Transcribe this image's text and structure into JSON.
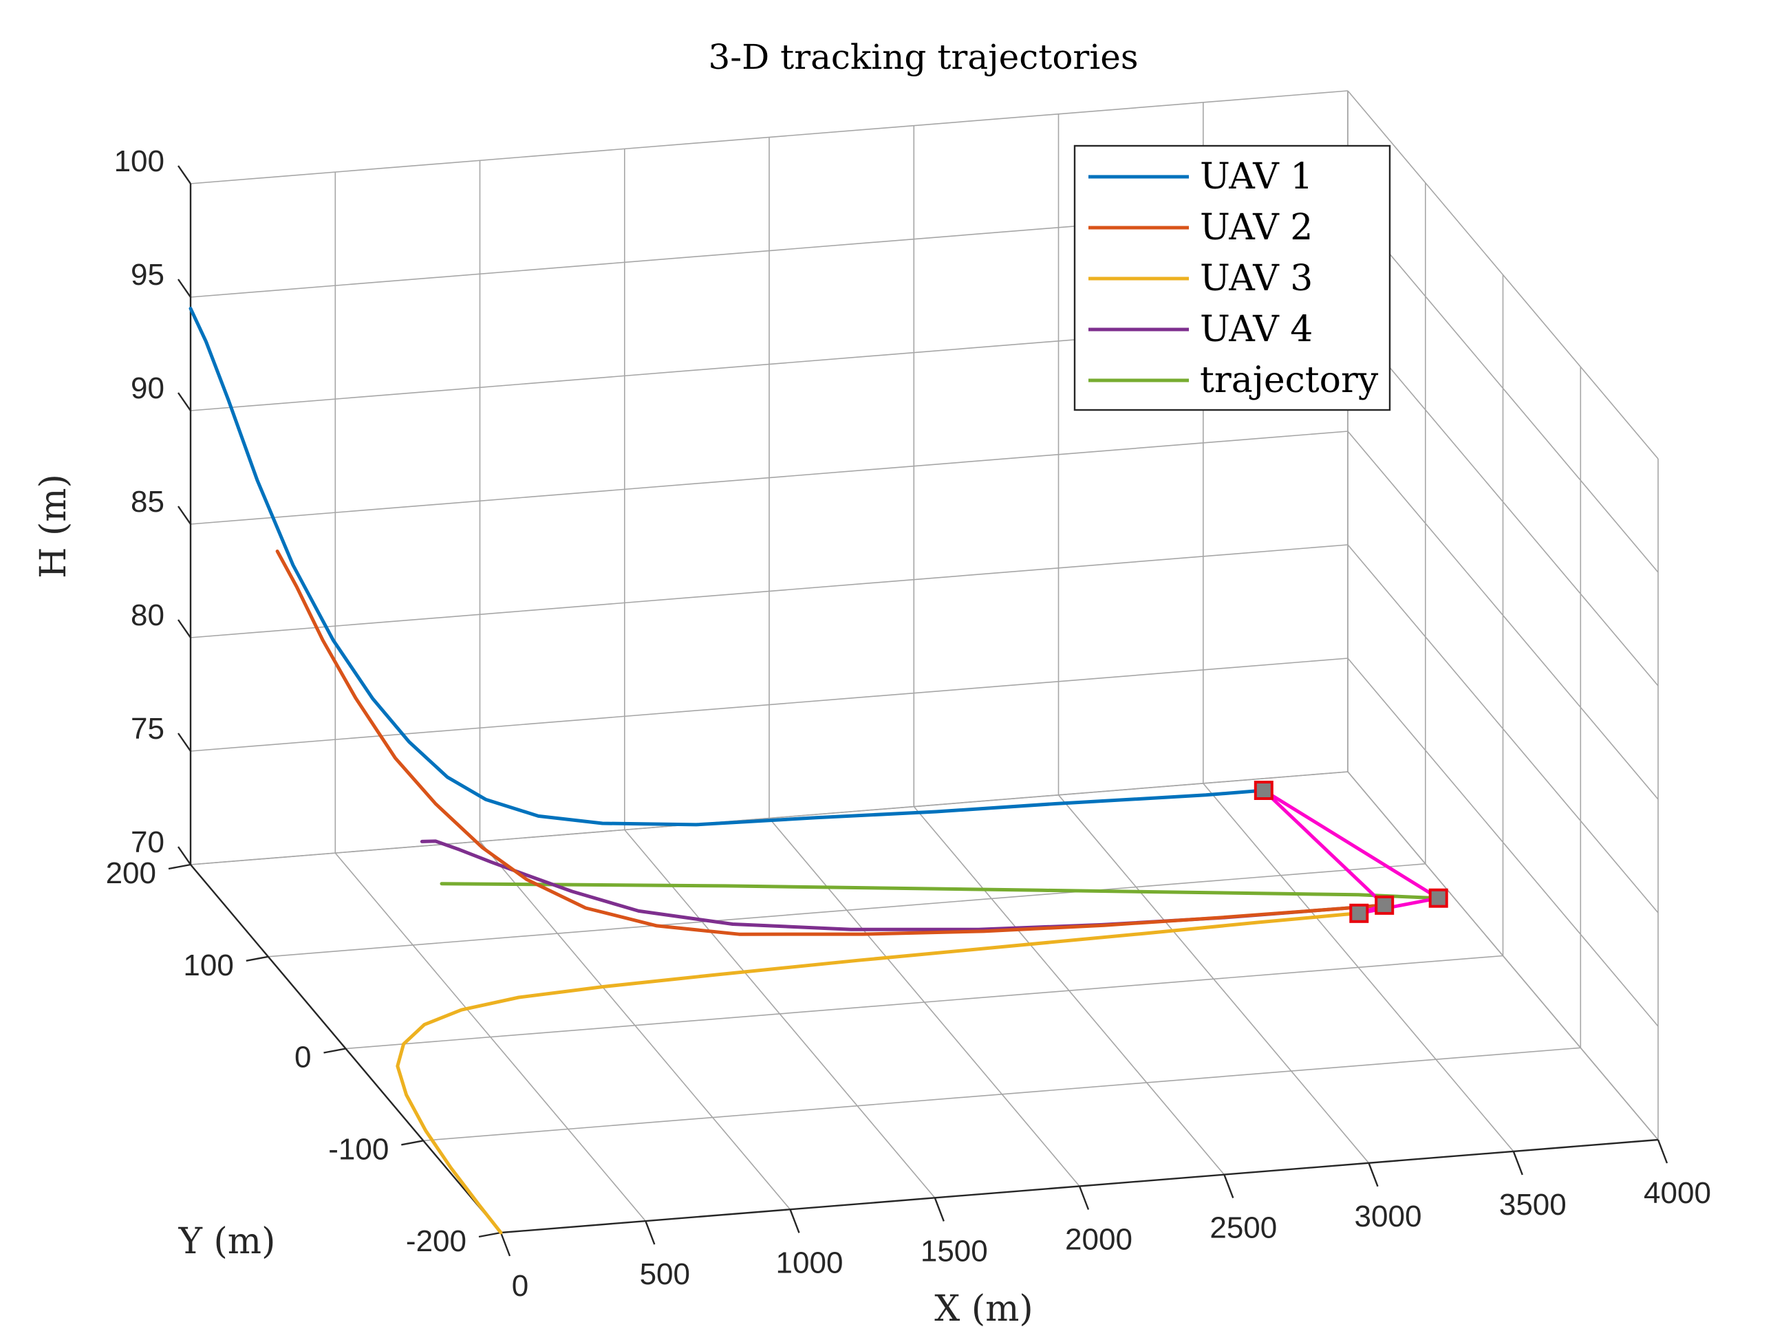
{
  "chart_data": {
    "type": "line3d",
    "title": "3-D tracking trajectories",
    "xlabel": "X (m)",
    "ylabel": "Y (m)",
    "zlabel": "H (m)",
    "xlim": [
      0,
      4000
    ],
    "ylim": [
      -200,
      200
    ],
    "zlim": [
      70,
      100
    ],
    "xticks": [
      0,
      500,
      1000,
      1500,
      2000,
      2500,
      3000,
      3500,
      4000
    ],
    "yticks": [
      -200,
      -100,
      0,
      100,
      200
    ],
    "zticks": [
      70,
      75,
      80,
      85,
      90,
      95,
      100
    ],
    "xtick_labels": [
      "0",
      "500",
      "1000",
      "1500",
      "2000",
      "2500",
      "3000",
      "3500",
      "4000"
    ],
    "ytick_labels": [
      "-200",
      "-100",
      "0",
      "100",
      "200"
    ],
    "ztick_labels": [
      "70",
      "75",
      "80",
      "85",
      "90",
      "95",
      "100"
    ],
    "grid": true,
    "legend_position": "top-right",
    "series": [
      {
        "name": "UAV 1",
        "color": "#0072bd",
        "x": [
          0,
          40,
          90,
          150,
          220,
          300,
          380,
          460,
          550,
          650,
          800,
          1000,
          1300,
          1700,
          2100,
          2500,
          3000,
          3200
        ],
        "y": [
          200,
          195,
          185,
          170,
          150,
          128,
          107,
          90,
          74,
          62,
          50,
          42,
          33,
          28,
          22,
          18,
          10,
          10
        ],
        "z": [
          94.5,
          93.2,
          91.0,
          88.0,
          85.0,
          82.5,
          80.7,
          79.4,
          78.4,
          77.8,
          77.4,
          77.2,
          77.2,
          77.3,
          77.4,
          77.5,
          77.7,
          77.7
        ]
      },
      {
        "name": "UAV 2",
        "color": "#d95319",
        "x": [
          300,
          340,
          390,
          450,
          520,
          600,
          700,
          800,
          950,
          1150,
          1400,
          1800,
          2200,
          2600,
          3000,
          3400,
          3550
        ],
        "y": [
          200,
          190,
          175,
          155,
          130,
          108,
          85,
          65,
          45,
          28,
          15,
          5,
          -2,
          -8,
          -12,
          -15,
          -15
        ],
        "z": [
          83.5,
          82.3,
          80.5,
          78.7,
          77.0,
          75.8,
          74.7,
          74.0,
          73.4,
          73.1,
          73.0,
          73.0,
          73.0,
          73.1,
          73.2,
          73.3,
          73.3
        ]
      },
      {
        "name": "UAV 3",
        "color": "#edb120",
        "x": [
          0,
          5,
          15,
          35,
          70,
          120,
          200,
          320,
          480,
          700,
          1000,
          1400,
          1900,
          2400,
          2900,
          3300,
          3600,
          3650
        ],
        "y": [
          -200,
          -170,
          -130,
          -90,
          -52,
          -22,
          0,
          18,
          30,
          38,
          42,
          45,
          48,
          50,
          52,
          54,
          55,
          55
        ],
        "z": [
          70,
          70,
          70,
          70,
          70,
          70,
          70,
          70,
          70,
          70,
          70,
          70,
          70,
          70,
          70,
          70,
          70,
          70
        ]
      },
      {
        "name": "UAV 4",
        "color": "#7e2f8e",
        "x": [
          800,
          820,
          850,
          900,
          960,
          1050,
          1200,
          1450,
          1800,
          2200,
          2600,
          3000,
          3400,
          3550
        ],
        "y": [
          200,
          190,
          170,
          148,
          125,
          100,
          70,
          42,
          20,
          5,
          -5,
          -10,
          -15,
          -15
        ],
        "z": [
          70.2,
          70.6,
          71.0,
          71.3,
          71.6,
          71.8,
          72.0,
          72.3,
          72.6,
          72.8,
          73.0,
          73.1,
          73.3,
          73.3
        ]
      },
      {
        "name": "trajectory",
        "color": "#77ac30",
        "x": [
          600,
          1500,
          2500,
          3500,
          3750
        ],
        "y": [
          100,
          70,
          35,
          0,
          -10
        ],
        "z": [
          72.6,
          72.8,
          73.0,
          73.2,
          73.2
        ]
      }
    ],
    "formation": {
      "color": "#ff00cc",
      "marker_edge": "#e8000d",
      "marker_face": "#808080",
      "points": [
        {
          "x": 3200,
          "y": 10,
          "z": 77.7
        },
        {
          "x": 3550,
          "y": -15,
          "z": 73.3
        },
        {
          "x": 3650,
          "y": 55,
          "z": 70
        },
        {
          "x": 3750,
          "y": -10,
          "z": 73.2
        }
      ],
      "edges": [
        [
          0,
          1
        ],
        [
          0,
          3
        ],
        [
          1,
          2
        ],
        [
          3,
          2
        ]
      ]
    }
  }
}
